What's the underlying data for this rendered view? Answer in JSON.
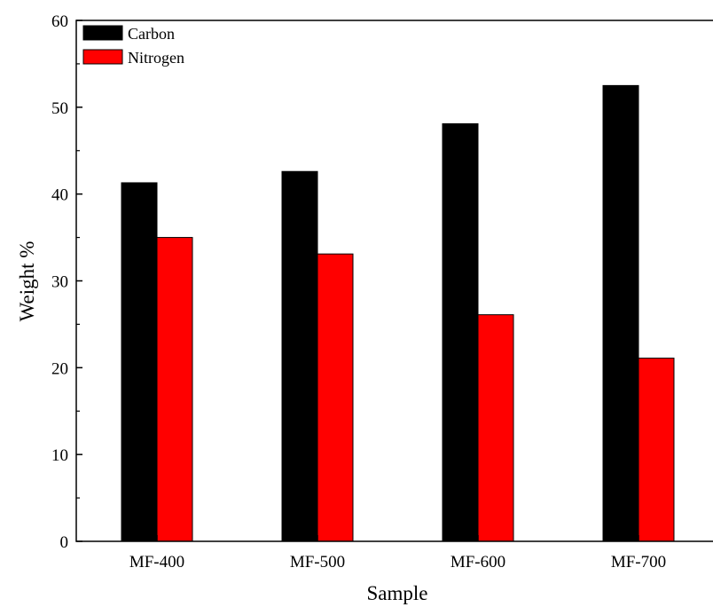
{
  "chart_data": {
    "type": "bar",
    "xlabel": "Sample",
    "ylabel": "Weight %",
    "categories": [
      "MF-400",
      "MF-500",
      "MF-600",
      "MF-700"
    ],
    "series": [
      {
        "name": "Carbon",
        "color": "#000000",
        "values": [
          41.3,
          42.6,
          48.1,
          52.5
        ]
      },
      {
        "name": "Nitrogen",
        "color": "#ff0000",
        "values": [
          35.0,
          33.1,
          26.1,
          21.1
        ]
      }
    ],
    "ylim": [
      0,
      60
    ],
    "yticks": [
      "0",
      "10",
      "20",
      "30",
      "40",
      "50",
      "60"
    ],
    "grid": false,
    "legend_position": "top-left"
  }
}
